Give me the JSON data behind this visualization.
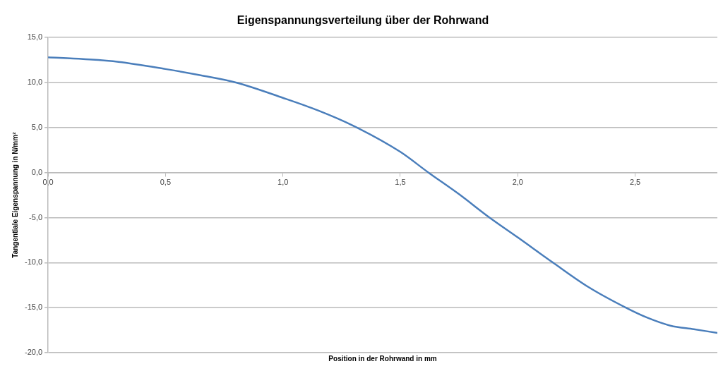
{
  "chart_data": {
    "type": "line",
    "title": "Eigenspannungsverteilung über der Rohrwand",
    "xlabel": "Position in der Rohrwand in mm",
    "ylabel": "Tangentiale Eigenspannung in N/mm²",
    "x": [
      0,
      0.15,
      0.3,
      0.5,
      0.65,
      0.8,
      1.0,
      1.15,
      1.3,
      1.5,
      1.62,
      1.75,
      1.88,
      2.0,
      2.15,
      2.3,
      2.46,
      2.55,
      2.65,
      2.75,
      2.85
    ],
    "series": [
      {
        "color": "#4a7ebb",
        "values": [
          12.8,
          12.6,
          12.3,
          11.5,
          10.8,
          10.0,
          8.3,
          6.9,
          5.2,
          2.3,
          0.0,
          -2.4,
          -5.0,
          -7.2,
          -10.0,
          -12.7,
          -15.0,
          -16.1,
          -17.0,
          -17.4,
          -17.8
        ]
      }
    ],
    "xlim": [
      0,
      2.85
    ],
    "ylim": [
      -20,
      15
    ],
    "xticks": [
      {
        "value": 0,
        "label": "0,0"
      },
      {
        "value": 0.5,
        "label": "0,5"
      },
      {
        "value": 1,
        "label": "1,0"
      },
      {
        "value": 1.5,
        "label": "1,5"
      },
      {
        "value": 2,
        "label": "2,0"
      },
      {
        "value": 2.5,
        "label": "2,5"
      }
    ],
    "yticks": [
      {
        "value": -20,
        "label": "-20,0"
      },
      {
        "value": -15,
        "label": "-15,0"
      },
      {
        "value": -10,
        "label": "-10,0"
      },
      {
        "value": -5,
        "label": "-5,0"
      },
      {
        "value": 0,
        "label": "0,0"
      },
      {
        "value": 5,
        "label": "5,0"
      },
      {
        "value": 10,
        "label": "10,0"
      },
      {
        "value": 15,
        "label": "15,0"
      }
    ],
    "grid": "y",
    "legend": false,
    "marker": "none",
    "line_style": "solid"
  }
}
